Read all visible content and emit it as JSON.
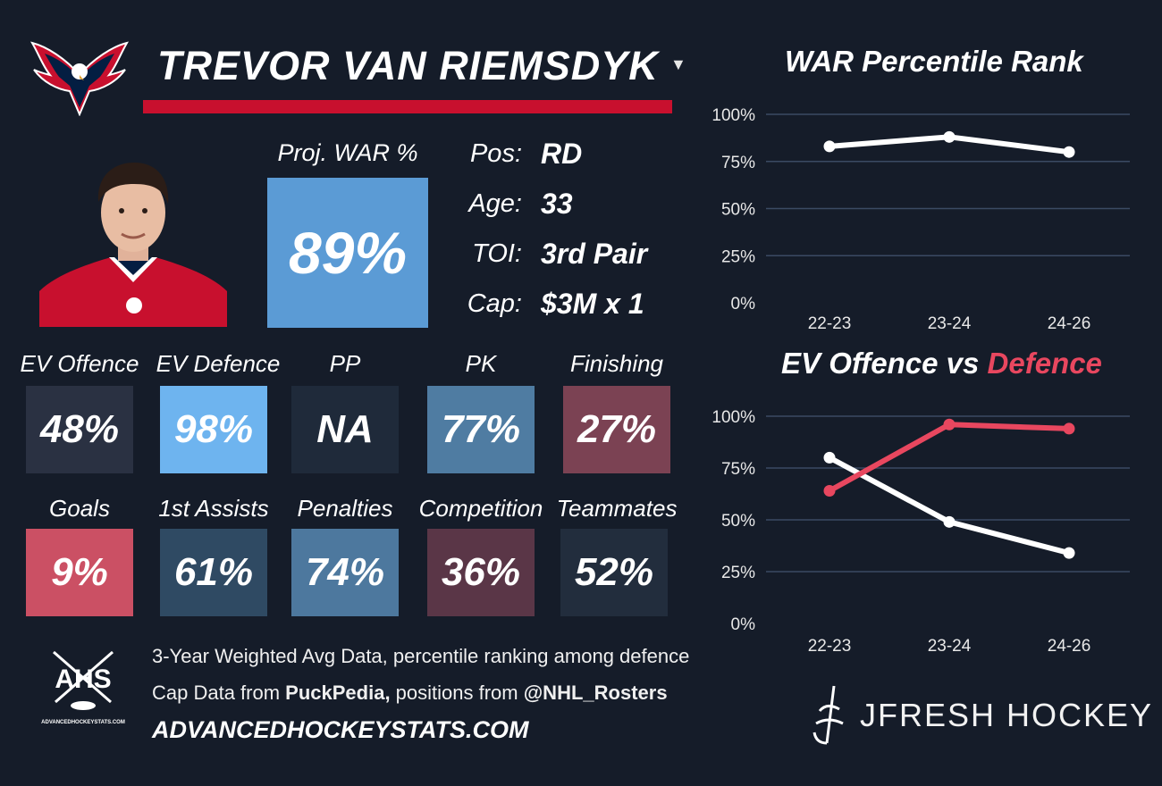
{
  "player": {
    "name": "TREVOR VAN RIEMSDYK"
  },
  "proj_war": {
    "label": "Proj. WAR %",
    "value": "89%"
  },
  "info": [
    {
      "key": "Pos:",
      "value": "RD"
    },
    {
      "key": "Age:",
      "value": "33"
    },
    {
      "key": "TOI:",
      "value": "3rd Pair"
    },
    {
      "key": "Cap:",
      "value": "$3M x 1"
    }
  ],
  "tiles": [
    {
      "label": "EV Offence",
      "value": "48%",
      "color": "#2a3142"
    },
    {
      "label": "EV Defence",
      "value": "98%",
      "color": "#6eb4ef"
    },
    {
      "label": "PP",
      "value": "NA",
      "color": "#1f2a3a"
    },
    {
      "label": "PK",
      "value": "77%",
      "color": "#4f7ca2"
    },
    {
      "label": "Finishing",
      "value": "27%",
      "color": "#7b4253"
    },
    {
      "label": "Goals",
      "value": "9%",
      "color": "#cb5064"
    },
    {
      "label": "1st Assists",
      "value": "61%",
      "color": "#2f4a63"
    },
    {
      "label": "Penalties",
      "value": "74%",
      "color": "#4d789e"
    },
    {
      "label": "Competition",
      "value": "36%",
      "color": "#5a3647"
    },
    {
      "label": "Teammates",
      "value": "52%",
      "color": "#222d3d"
    }
  ],
  "footer": {
    "line1": "3-Year Weighted Avg Data, percentile ranking among defence",
    "line2_prefix": "Cap Data from ",
    "line2_source1": "PuckPedia,",
    "line2_middle": " positions from ",
    "line2_source2": "@NHL_Rosters",
    "site": "ADVANCEDHOCKEYSTATS.COM",
    "ahs_logo_text": "AHS",
    "ahs_logo_subtext": "ADVANCEDHOCKEYSTATS.COM",
    "brand": "JFRESH HOCKEY"
  },
  "colors": {
    "team_red": "#c8102e",
    "team_navy": "#041e42",
    "offence_line": "#ffffff",
    "defence_line": "#e8475f"
  },
  "chart_data": [
    {
      "type": "line",
      "title": "WAR Percentile Rank",
      "categories": [
        "22-23",
        "23-24",
        "24-26"
      ],
      "series": [
        {
          "values": [
            83,
            88,
            80
          ],
          "color": "#ffffff"
        }
      ],
      "ylim": [
        0,
        100
      ],
      "yticks": [
        "0%",
        "25%",
        "50%",
        "75%",
        "100%"
      ],
      "grid": true
    },
    {
      "type": "line",
      "title_part1": "EV Offence vs ",
      "title_part2": "Defence",
      "categories": [
        "22-23",
        "23-24",
        "24-26"
      ],
      "series": [
        {
          "values": [
            80,
            49,
            34
          ],
          "color": "#ffffff"
        },
        {
          "values": [
            64,
            96,
            94
          ],
          "color": "#e8475f"
        }
      ],
      "ylim": [
        0,
        100
      ],
      "yticks": [
        "0%",
        "25%",
        "50%",
        "75%",
        "100%"
      ],
      "grid": true
    }
  ]
}
